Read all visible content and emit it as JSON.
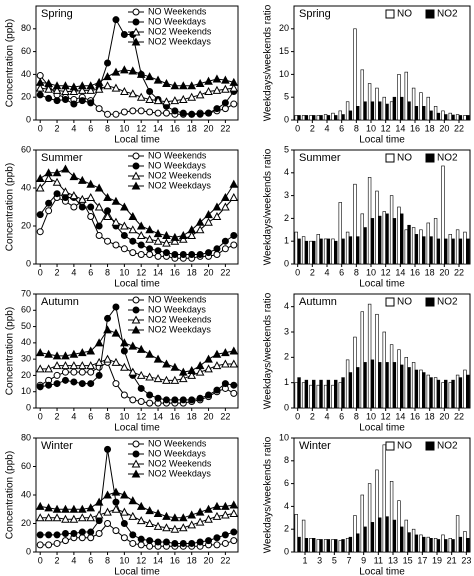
{
  "chart_data": [
    {
      "type": "line",
      "title": "Spring",
      "xlabel": "Local time",
      "ylabel": "Concentration (ppb)",
      "x": [
        0,
        1,
        2,
        3,
        4,
        5,
        6,
        7,
        8,
        9,
        10,
        11,
        12,
        13,
        14,
        15,
        16,
        17,
        18,
        19,
        20,
        21,
        22,
        23
      ],
      "xlim": [
        -0.5,
        23.5
      ],
      "ylim": [
        0,
        100
      ],
      "xticks": [
        0,
        2,
        4,
        6,
        8,
        10,
        12,
        14,
        16,
        18,
        20,
        22
      ],
      "yticks": [
        0,
        20,
        40,
        60,
        80
      ],
      "series": [
        {
          "name": "NO Weekends",
          "color": "#000000",
          "marker": "circle",
          "fill": "#ffffff",
          "values": [
            39,
            30,
            22,
            20,
            18,
            20,
            17,
            10,
            5,
            5,
            7,
            8,
            8,
            7,
            6,
            6,
            5,
            5,
            5,
            6,
            6,
            8,
            10,
            14
          ]
        },
        {
          "name": "NO Weekdays",
          "color": "#000000",
          "marker": "circle",
          "fill": "#000000",
          "values": [
            22,
            19,
            17,
            18,
            14,
            17,
            15,
            28,
            50,
            88,
            75,
            75,
            40,
            25,
            18,
            12,
            8,
            6,
            5,
            5,
            6,
            10,
            15,
            25
          ]
        },
        {
          "name": "NO2 Weekends",
          "color": "#000000",
          "marker": "triangle",
          "fill": "#ffffff",
          "values": [
            28,
            27,
            26,
            25,
            25,
            26,
            26,
            27,
            30,
            28,
            25,
            23,
            20,
            18,
            17,
            16,
            17,
            18,
            20,
            22,
            25,
            26,
            27,
            28
          ]
        },
        {
          "name": "NO2 Weekdays",
          "color": "#000000",
          "marker": "triangle",
          "fill": "#000000",
          "values": [
            33,
            32,
            30,
            30,
            29,
            30,
            30,
            33,
            38,
            42,
            44,
            43,
            40,
            38,
            35,
            32,
            30,
            30,
            30,
            32,
            34,
            36,
            35,
            33
          ]
        }
      ]
    },
    {
      "type": "bar",
      "title": "Spring",
      "xlabel": "Local time",
      "ylabel": "Weekdays/weekends ratio",
      "x": [
        0,
        1,
        2,
        3,
        4,
        5,
        6,
        7,
        8,
        9,
        10,
        11,
        12,
        13,
        14,
        15,
        16,
        17,
        18,
        19,
        20,
        21,
        22,
        23
      ],
      "xlim": [
        -0.5,
        23.5
      ],
      "ylim": [
        0,
        25
      ],
      "xticks": [
        0,
        2,
        4,
        6,
        8,
        10,
        12,
        14,
        16,
        18,
        20,
        22
      ],
      "yticks": [
        0,
        5,
        10,
        15,
        20
      ],
      "series": [
        {
          "name": "NO",
          "color": "#ffffff",
          "values": [
            1,
            1,
            1,
            1,
            1.2,
            1.5,
            2,
            4,
            20,
            11,
            8,
            7,
            5,
            4,
            10,
            10.5,
            7,
            6,
            5,
            3,
            2,
            1.5,
            1.2,
            1
          ]
        },
        {
          "name": "NO2",
          "color": "#000000",
          "values": [
            1,
            1,
            1,
            1,
            1,
            1,
            1.2,
            2,
            3,
            4,
            4,
            4,
            3.5,
            5,
            5,
            4,
            3,
            3,
            2,
            1.5,
            1.2,
            1.1,
            1,
            1
          ]
        }
      ]
    },
    {
      "type": "line",
      "title": "Summer",
      "xlabel": "Local time",
      "ylabel": "Concentration (ppb)",
      "x": [
        0,
        1,
        2,
        3,
        4,
        5,
        6,
        7,
        8,
        9,
        10,
        11,
        12,
        13,
        14,
        15,
        16,
        17,
        18,
        19,
        20,
        21,
        22,
        23
      ],
      "xlim": [
        -0.5,
        23.5
      ],
      "ylim": [
        0,
        60
      ],
      "xticks": [
        0,
        2,
        4,
        6,
        8,
        10,
        12,
        14,
        16,
        18,
        20,
        22
      ],
      "yticks": [
        0,
        20,
        40,
        60
      ],
      "series": [
        {
          "name": "NO Weekends",
          "color": "#000000",
          "marker": "circle",
          "fill": "#ffffff",
          "values": [
            17,
            28,
            35,
            33,
            30,
            33,
            25,
            15,
            12,
            10,
            8,
            6,
            5,
            5,
            4,
            4,
            3,
            3,
            3,
            4,
            4,
            5,
            8,
            10
          ]
        },
        {
          "name": "NO Weekdays",
          "color": "#000000",
          "marker": "circle",
          "fill": "#000000",
          "values": [
            26,
            32,
            37,
            35,
            35,
            30,
            30,
            20,
            28,
            20,
            15,
            12,
            10,
            8,
            7,
            6,
            5,
            5,
            5,
            5,
            6,
            8,
            12,
            15
          ]
        },
        {
          "name": "NO2 Weekends",
          "color": "#000000",
          "marker": "triangle",
          "fill": "#ffffff",
          "values": [
            40,
            45,
            43,
            38,
            36,
            34,
            35,
            30,
            25,
            22,
            20,
            18,
            15,
            13,
            12,
            11,
            12,
            13,
            15,
            18,
            22,
            25,
            30,
            35
          ]
        },
        {
          "name": "NO2 Weekdays",
          "color": "#000000",
          "marker": "triangle",
          "fill": "#000000",
          "values": [
            45,
            48,
            48,
            50,
            46,
            44,
            42,
            40,
            35,
            33,
            30,
            25,
            20,
            18,
            16,
            15,
            14,
            15,
            18,
            22,
            26,
            30,
            35,
            42
          ]
        }
      ]
    },
    {
      "type": "bar",
      "title": "Summer",
      "xlabel": "Local time",
      "ylabel": "Weekdays/weekends ratio",
      "x": [
        0,
        1,
        2,
        3,
        4,
        5,
        6,
        7,
        8,
        9,
        10,
        11,
        12,
        13,
        14,
        15,
        16,
        17,
        18,
        19,
        20,
        21,
        22,
        23
      ],
      "xlim": [
        -0.5,
        23.5
      ],
      "ylim": [
        0,
        5
      ],
      "xticks": [
        0,
        2,
        4,
        6,
        8,
        10,
        12,
        14,
        16,
        18,
        20,
        22
      ],
      "yticks": [
        0,
        1,
        2,
        3,
        4,
        5
      ],
      "series": [
        {
          "name": "NO",
          "color": "#ffffff",
          "values": [
            1.4,
            1.2,
            1,
            1.3,
            1.1,
            1.1,
            2.7,
            1.4,
            3.5,
            2.2,
            3.8,
            3.2,
            2.3,
            3,
            2.5,
            1.5,
            1.6,
            1.5,
            1.8,
            2,
            4.3,
            1.3,
            1.5,
            1.4
          ]
        },
        {
          "name": "NO2",
          "color": "#000000",
          "values": [
            1.1,
            1,
            1,
            1.1,
            1.1,
            1,
            1.1,
            1.2,
            1.2,
            1.6,
            2,
            2.1,
            2.2,
            2,
            2.2,
            1.7,
            1.3,
            1.2,
            1.2,
            1.1,
            1.1,
            1.1,
            1.1,
            1.1
          ]
        }
      ]
    },
    {
      "type": "line",
      "title": "Autumn",
      "xlabel": "Local time",
      "ylabel": "Concentration (ppb)",
      "x": [
        0,
        1,
        2,
        3,
        4,
        5,
        6,
        7,
        8,
        9,
        10,
        11,
        12,
        13,
        14,
        15,
        16,
        17,
        18,
        19,
        20,
        21,
        22,
        23
      ],
      "xlim": [
        -0.5,
        23.5
      ],
      "ylim": [
        0,
        70
      ],
      "xticks": [
        0,
        2,
        4,
        6,
        8,
        10,
        12,
        14,
        16,
        18,
        20,
        22
      ],
      "yticks": [
        0,
        10,
        20,
        30,
        40,
        50,
        60,
        70
      ],
      "series": [
        {
          "name": "NO Weekends",
          "color": "#000000",
          "marker": "circle",
          "fill": "#ffffff",
          "values": [
            14,
            17,
            20,
            22,
            22,
            22,
            22,
            25,
            28,
            15,
            8,
            5,
            4,
            3,
            3,
            3,
            3,
            3,
            4,
            5,
            7,
            10,
            12,
            9
          ]
        },
        {
          "name": "NO Weekdays",
          "color": "#000000",
          "marker": "circle",
          "fill": "#000000",
          "values": [
            13,
            14,
            15,
            17,
            16,
            15,
            15,
            20,
            55,
            62,
            35,
            20,
            12,
            8,
            6,
            5,
            5,
            5,
            5,
            6,
            8,
            11,
            15,
            14
          ]
        },
        {
          "name": "NO2 Weekends",
          "color": "#000000",
          "marker": "triangle",
          "fill": "#ffffff",
          "values": [
            24,
            24,
            26,
            26,
            26,
            26,
            26,
            28,
            30,
            28,
            25,
            22,
            20,
            19,
            18,
            17,
            17,
            18,
            20,
            22,
            24,
            26,
            27,
            27
          ]
        },
        {
          "name": "NO2 Weekdays",
          "color": "#000000",
          "marker": "triangle",
          "fill": "#000000",
          "values": [
            34,
            33,
            32,
            32,
            33,
            34,
            35,
            40,
            48,
            46,
            40,
            38,
            36,
            33,
            30,
            27,
            25,
            22,
            23,
            26,
            30,
            33,
            34,
            35
          ]
        }
      ]
    },
    {
      "type": "bar",
      "title": "Autumn",
      "xlabel": "Local time",
      "ylabel": "Weekdays/weekends ratio",
      "x": [
        0,
        1,
        2,
        3,
        4,
        5,
        6,
        7,
        8,
        9,
        10,
        11,
        12,
        13,
        14,
        15,
        16,
        17,
        18,
        19,
        20,
        21,
        22,
        23
      ],
      "xlim": [
        -0.5,
        23.5
      ],
      "ylim": [
        0,
        4.5
      ],
      "xticks": [
        0,
        2,
        4,
        6,
        8,
        10,
        12,
        14,
        16,
        18,
        20,
        22
      ],
      "yticks": [
        0,
        1,
        2,
        3,
        4
      ],
      "series": [
        {
          "name": "NO",
          "color": "#ffffff",
          "values": [
            1,
            1,
            0.9,
            0.9,
            0.9,
            0.9,
            1,
            1.9,
            2.8,
            3.8,
            4.1,
            3.7,
            3,
            2.5,
            2.3,
            2,
            1.8,
            1.5,
            1.3,
            1.2,
            1,
            1,
            1.3,
            1.5
          ]
        },
        {
          "name": "NO2",
          "color": "#000000",
          "values": [
            1.2,
            1.1,
            1.1,
            1.1,
            1.1,
            1.1,
            1.2,
            1.4,
            1.6,
            1.8,
            1.9,
            1.8,
            1.8,
            1.8,
            1.7,
            1.6,
            1.5,
            1.4,
            1.2,
            1.1,
            1.1,
            1.1,
            1.2,
            1.3
          ]
        }
      ]
    },
    {
      "type": "line",
      "title": "Winter",
      "xlabel": "Local time",
      "ylabel": "Concentration (ppb)",
      "x": [
        0,
        1,
        2,
        3,
        4,
        5,
        6,
        7,
        8,
        9,
        10,
        11,
        12,
        13,
        14,
        15,
        16,
        17,
        18,
        19,
        20,
        21,
        22,
        23
      ],
      "xlim": [
        -0.5,
        23.5
      ],
      "ylim": [
        0,
        80
      ],
      "xticks": [
        0,
        2,
        4,
        6,
        8,
        10,
        12,
        14,
        16,
        18,
        20,
        22
      ],
      "yticks": [
        0,
        20,
        40,
        60,
        80
      ],
      "series": [
        {
          "name": "NO Weekends",
          "color": "#000000",
          "marker": "circle",
          "fill": "#ffffff",
          "values": [
            5,
            5,
            6,
            8,
            10,
            10,
            10,
            13,
            20,
            15,
            10,
            6,
            5,
            4,
            4,
            4,
            4,
            4,
            4,
            4,
            5,
            5,
            6,
            8
          ]
        },
        {
          "name": "NO Weekdays",
          "color": "#000000",
          "marker": "circle",
          "fill": "#000000",
          "values": [
            12,
            12,
            12,
            13,
            13,
            14,
            14,
            22,
            72,
            35,
            20,
            12,
            9,
            8,
            7,
            7,
            6,
            6,
            6,
            7,
            8,
            10,
            12,
            14
          ]
        },
        {
          "name": "NO2 Weekends",
          "color": "#000000",
          "marker": "triangle",
          "fill": "#ffffff",
          "values": [
            24,
            24,
            24,
            23,
            23,
            24,
            24,
            26,
            28,
            30,
            28,
            25,
            22,
            20,
            18,
            17,
            16,
            17,
            19,
            21,
            23,
            25,
            26,
            27
          ]
        },
        {
          "name": "NO2 Weekdays",
          "color": "#000000",
          "marker": "triangle",
          "fill": "#000000",
          "values": [
            32,
            31,
            30,
            30,
            30,
            30,
            31,
            35,
            40,
            42,
            40,
            36,
            32,
            29,
            27,
            25,
            24,
            24,
            26,
            28,
            30,
            32,
            32,
            33
          ]
        }
      ]
    },
    {
      "type": "bar",
      "title": "Winter",
      "xlabel": "Local time",
      "ylabel": "Weekdays/weekends ratio",
      "x": [
        0,
        1,
        2,
        3,
        4,
        5,
        6,
        7,
        8,
        9,
        10,
        11,
        12,
        13,
        14,
        15,
        16,
        17,
        18,
        19,
        20,
        21,
        22,
        23
      ],
      "xlim": [
        -0.5,
        23.5
      ],
      "ylim": [
        0,
        10
      ],
      "xticks": [
        1,
        3,
        5,
        7,
        9,
        11,
        13,
        15,
        17,
        19,
        21,
        23
      ],
      "yticks": [
        0,
        2,
        4,
        6,
        8,
        10
      ],
      "series": [
        {
          "name": "NO",
          "color": "#ffffff",
          "values": [
            3.3,
            2.8,
            1.2,
            1.1,
            1.1,
            1.1,
            1,
            1.2,
            3.2,
            5,
            6,
            7.2,
            9.4,
            6.2,
            4.5,
            2.8,
            2,
            1.5,
            1.3,
            1.2,
            1.5,
            1.2,
            3.2,
            1.8
          ]
        },
        {
          "name": "NO2",
          "color": "#000000",
          "values": [
            1.3,
            1.2,
            1.2,
            1.1,
            1.1,
            1.1,
            1.1,
            1.3,
            1.6,
            2.2,
            2.6,
            3,
            3.1,
            2.8,
            2.2,
            1.7,
            1.5,
            1.3,
            1.2,
            1.1,
            1.1,
            1.1,
            1.3,
            1.2
          ]
        }
      ]
    }
  ]
}
